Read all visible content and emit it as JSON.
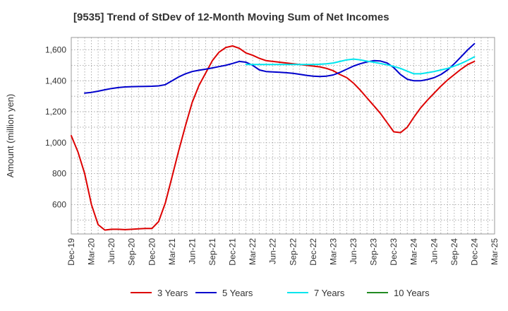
{
  "chart_data": {
    "type": "line",
    "title": "[9535]  Trend of StDev of 12-Month Moving Sum of Net Incomes",
    "xlabel": "",
    "ylabel": "Amount (million yen)",
    "ylim": [
      410,
      1680
    ],
    "yticks": [
      600,
      800,
      1000,
      1200,
      1400,
      1600
    ],
    "ytick_labels": [
      "600",
      "800",
      "1,000",
      "1,200",
      "1,400",
      "1,600"
    ],
    "xticks": [
      "Dec-19",
      "Mar-20",
      "Jun-20",
      "Sep-20",
      "Dec-20",
      "Mar-21",
      "Jun-21",
      "Sep-21",
      "Dec-21",
      "Mar-22",
      "Jun-22",
      "Sep-22",
      "Dec-22",
      "Mar-23",
      "Jun-23",
      "Sep-23",
      "Dec-23",
      "Mar-24",
      "Jun-24",
      "Sep-24",
      "Dec-24",
      "Mar-25"
    ],
    "grid": true,
    "legend_position": "bottom",
    "series": [
      {
        "name": "3 Years",
        "color": "#dd0000",
        "x": [
          "Dec-19",
          "Jan-20",
          "Feb-20",
          "Mar-20",
          "Apr-20",
          "May-20",
          "Jun-20",
          "Jul-20",
          "Aug-20",
          "Sep-20",
          "Oct-20",
          "Nov-20",
          "Dec-20",
          "Jan-21",
          "Feb-21",
          "Mar-21",
          "Apr-21",
          "May-21",
          "Jun-21",
          "Jul-21",
          "Aug-21",
          "Sep-21",
          "Oct-21",
          "Nov-21",
          "Dec-21",
          "Jan-22",
          "Feb-22",
          "Mar-22",
          "Apr-22",
          "May-22",
          "Jun-22",
          "Jul-22",
          "Aug-22",
          "Sep-22",
          "Oct-22",
          "Nov-22",
          "Dec-22",
          "Jan-23",
          "Feb-23",
          "Mar-23",
          "Apr-23",
          "May-23",
          "Jun-23",
          "Jul-23",
          "Aug-23",
          "Sep-23",
          "Oct-23",
          "Nov-23",
          "Dec-23",
          "Jan-24",
          "Feb-24",
          "Mar-24",
          "Apr-24",
          "May-24",
          "Jun-24",
          "Jul-24",
          "Aug-24",
          "Sep-24",
          "Oct-24",
          "Nov-24",
          "Dec-24"
        ],
        "values": [
          1045,
          940,
          800,
          600,
          470,
          435,
          440,
          440,
          438,
          440,
          443,
          445,
          445,
          490,
          610,
          780,
          950,
          1110,
          1260,
          1370,
          1450,
          1530,
          1585,
          1615,
          1625,
          1610,
          1580,
          1565,
          1545,
          1530,
          1525,
          1520,
          1515,
          1510,
          1505,
          1500,
          1495,
          1490,
          1480,
          1465,
          1440,
          1420,
          1385,
          1340,
          1290,
          1240,
          1190,
          1130,
          1070,
          1065,
          1100,
          1165,
          1225,
          1275,
          1320,
          1365,
          1405,
          1440,
          1475,
          1505,
          1525
        ]
      },
      {
        "name": "5 Years",
        "color": "#0000cc",
        "x": [
          "Dec-19",
          "Jan-20",
          "Feb-20",
          "Mar-20",
          "Apr-20",
          "May-20",
          "Jun-20",
          "Jul-20",
          "Aug-20",
          "Sep-20",
          "Oct-20",
          "Nov-20",
          "Dec-20",
          "Jan-21",
          "Feb-21",
          "Mar-21",
          "Apr-21",
          "May-21",
          "Jun-21",
          "Jul-21",
          "Aug-21",
          "Sep-21",
          "Oct-21",
          "Nov-21",
          "Dec-21",
          "Jan-22",
          "Feb-22",
          "Mar-22",
          "Apr-22",
          "May-22",
          "Jun-22",
          "Jul-22",
          "Aug-22",
          "Sep-22",
          "Oct-22",
          "Nov-22",
          "Dec-22",
          "Jan-23",
          "Feb-23",
          "Mar-23",
          "Apr-23",
          "May-23",
          "Jun-23",
          "Jul-23",
          "Aug-23",
          "Sep-23",
          "Oct-23",
          "Nov-23",
          "Dec-23",
          "Jan-24",
          "Feb-24",
          "Mar-24",
          "Apr-24",
          "May-24",
          "Jun-24",
          "Jul-24",
          "Aug-24",
          "Sep-24",
          "Oct-24",
          "Nov-24",
          "Dec-24"
        ],
        "values": [
          null,
          null,
          1320,
          1325,
          1333,
          1342,
          1350,
          1356,
          1360,
          1362,
          1363,
          1364,
          1365,
          1367,
          1375,
          1400,
          1425,
          1445,
          1460,
          1468,
          1475,
          1483,
          1492,
          1500,
          1512,
          1525,
          1520,
          1500,
          1470,
          1460,
          1457,
          1455,
          1452,
          1448,
          1442,
          1435,
          1430,
          1428,
          1430,
          1438,
          1455,
          1475,
          1495,
          1510,
          1522,
          1530,
          1528,
          1515,
          1485,
          1440,
          1410,
          1400,
          1400,
          1408,
          1420,
          1440,
          1470,
          1510,
          1555,
          1600,
          1640
        ]
      },
      {
        "name": "7 Years",
        "color": "#00e5ee",
        "x": [
          "Dec-21",
          "Jan-22",
          "Feb-22",
          "Mar-22",
          "Apr-22",
          "May-22",
          "Jun-22",
          "Jul-22",
          "Aug-22",
          "Sep-22",
          "Oct-22",
          "Nov-22",
          "Dec-22",
          "Jan-23",
          "Feb-23",
          "Mar-23",
          "Apr-23",
          "May-23",
          "Jun-23",
          "Jul-23",
          "Aug-23",
          "Sep-23",
          "Oct-23",
          "Nov-23",
          "Dec-23",
          "Jan-24",
          "Feb-24",
          "Mar-24",
          "Apr-24",
          "May-24",
          "Jun-24",
          "Jul-24",
          "Aug-24",
          "Sep-24",
          "Oct-24",
          "Nov-24",
          "Dec-24"
        ],
        "values": [
          null,
          null,
          1505,
          1505,
          1505,
          1505,
          1505,
          1505,
          1505,
          1505,
          1505,
          1505,
          1505,
          1507,
          1510,
          1515,
          1525,
          1535,
          1540,
          1535,
          1527,
          1520,
          1512,
          1503,
          1493,
          1480,
          1462,
          1445,
          1445,
          1452,
          1460,
          1470,
          1480,
          1495,
          1512,
          1532,
          1555
        ]
      },
      {
        "name": "10 Years",
        "color": "#228b22",
        "x": [],
        "values": []
      }
    ]
  }
}
